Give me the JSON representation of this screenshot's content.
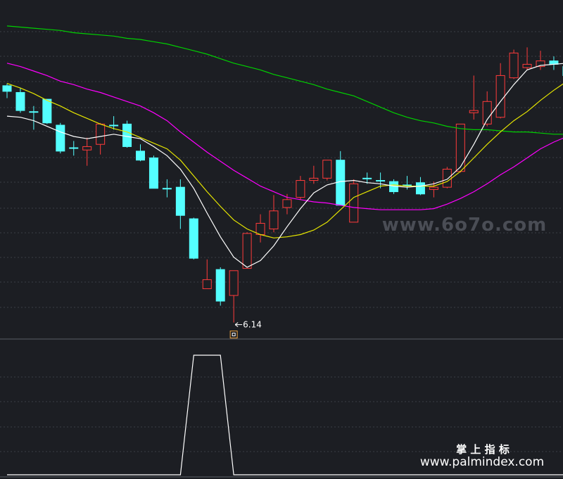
{
  "chart_data": {
    "type": "candlestick",
    "ylim": [
      6,
      9
    ],
    "up_color": "#ff3b3b",
    "down_color": "#54ffff",
    "candles": {
      "open": [
        8.24,
        8.18,
        8.01,
        8.12,
        7.89,
        7.69,
        7.67,
        7.72,
        7.89,
        7.9,
        7.66,
        7.6,
        7.33,
        7.34,
        7.06,
        6.44,
        6.61,
        6.38,
        6.62,
        6.92,
        6.97,
        7.16,
        7.25,
        7.4,
        7.42,
        7.58,
        7.03,
        7.42,
        7.4,
        7.39,
        7.36,
        7.38,
        7.32,
        7.34,
        7.48,
        8.0,
        7.9,
        7.96,
        8.31,
        8.4,
        8.41,
        8.46,
        8.41
      ],
      "high": [
        8.26,
        8.22,
        8.06,
        8.12,
        7.91,
        7.75,
        7.78,
        7.91,
        7.97,
        7.93,
        7.72,
        7.62,
        7.41,
        7.41,
        7.07,
        6.7,
        6.63,
        6.6,
        6.94,
        7.1,
        7.27,
        7.28,
        7.44,
        7.53,
        7.58,
        7.66,
        7.41,
        7.47,
        7.47,
        7.41,
        7.44,
        7.43,
        7.39,
        7.52,
        7.9,
        8.33,
        8.19,
        8.44,
        8.56,
        8.58,
        8.55,
        8.5,
        8.43
      ],
      "low": [
        8.13,
        8.0,
        7.85,
        7.9,
        7.64,
        7.62,
        7.53,
        7.63,
        7.85,
        7.69,
        7.57,
        7.33,
        7.25,
        6.97,
        6.7,
        6.44,
        6.29,
        6.14,
        6.62,
        6.85,
        6.94,
        7.1,
        7.23,
        7.37,
        7.4,
        7.18,
        7.03,
        7.37,
        7.33,
        7.28,
        7.32,
        7.27,
        7.25,
        7.33,
        7.47,
        7.94,
        7.88,
        7.95,
        8.3,
        8.38,
        8.38,
        8.38,
        8.33
      ],
      "close": [
        8.19,
        8.02,
        8.01,
        7.91,
        7.66,
        7.69,
        7.7,
        7.9,
        7.89,
        7.7,
        7.58,
        7.33,
        7.33,
        7.09,
        6.71,
        6.52,
        6.33,
        6.6,
        6.93,
        7.02,
        7.13,
        7.23,
        7.4,
        7.42,
        7.58,
        7.18,
        7.37,
        7.42,
        7.4,
        7.3,
        7.36,
        7.28,
        7.34,
        7.5,
        7.9,
        8.02,
        8.1,
        8.33,
        8.53,
        8.43,
        8.46,
        8.43,
        8.33
      ]
    },
    "series": [
      {
        "color": "#00d000",
        "values": [
          8.77,
          8.76,
          8.75,
          8.74,
          8.73,
          8.71,
          8.7,
          8.69,
          8.68,
          8.66,
          8.65,
          8.63,
          8.61,
          8.58,
          8.55,
          8.52,
          8.48,
          8.44,
          8.41,
          8.38,
          8.34,
          8.31,
          8.28,
          8.25,
          8.21,
          8.18,
          8.15,
          8.1,
          8.05,
          8.0,
          7.96,
          7.93,
          7.91,
          7.88,
          7.86,
          7.85,
          7.85,
          7.84,
          7.83,
          7.83,
          7.82,
          7.81,
          7.81
        ]
      },
      {
        "color": "#ff00ff",
        "values": [
          8.44,
          8.41,
          8.37,
          8.33,
          8.28,
          8.25,
          8.21,
          8.18,
          8.14,
          8.1,
          8.06,
          8.0,
          7.93,
          7.83,
          7.74,
          7.65,
          7.57,
          7.49,
          7.42,
          7.35,
          7.3,
          7.25,
          7.23,
          7.21,
          7.2,
          7.18,
          7.16,
          7.15,
          7.14,
          7.14,
          7.14,
          7.14,
          7.15,
          7.19,
          7.24,
          7.3,
          7.37,
          7.45,
          7.52,
          7.6,
          7.68,
          7.74,
          7.79
        ]
      },
      {
        "color": "#e6e600",
        "values": [
          8.26,
          8.22,
          8.17,
          8.11,
          8.06,
          8.0,
          7.95,
          7.9,
          7.86,
          7.83,
          7.78,
          7.73,
          7.68,
          7.58,
          7.44,
          7.3,
          7.17,
          7.05,
          6.97,
          6.92,
          6.89,
          6.9,
          6.92,
          6.96,
          7.03,
          7.14,
          7.25,
          7.3,
          7.35,
          7.36,
          7.35,
          7.35,
          7.35,
          7.39,
          7.48,
          7.6,
          7.72,
          7.83,
          7.93,
          8.01,
          8.11,
          8.2,
          8.28
        ]
      },
      {
        "color": "#ffffff",
        "values": [
          7.97,
          7.96,
          7.93,
          7.88,
          7.83,
          7.79,
          7.77,
          7.79,
          7.81,
          7.79,
          7.77,
          7.7,
          7.62,
          7.5,
          7.33,
          7.11,
          6.9,
          6.72,
          6.63,
          6.69,
          6.82,
          6.99,
          7.15,
          7.29,
          7.36,
          7.39,
          7.4,
          7.38,
          7.37,
          7.35,
          7.34,
          7.35,
          7.37,
          7.41,
          7.52,
          7.72,
          7.94,
          8.1,
          8.25,
          8.38,
          8.42,
          8.43,
          8.44
        ]
      }
    ],
    "annotations": [
      {
        "label": "6.14",
        "value": 6.14
      }
    ],
    "indicator": {
      "color": "#ffffff",
      "ylim": [
        0,
        1
      ],
      "values": [
        0,
        0,
        0,
        0,
        0,
        0,
        0,
        0,
        0,
        0,
        0,
        0,
        0,
        0,
        1,
        1,
        1,
        0,
        0,
        0,
        0,
        0,
        0,
        0,
        0,
        0,
        0,
        0,
        0,
        0,
        0,
        0,
        0,
        0,
        0,
        0,
        0,
        0,
        0,
        0,
        0,
        0,
        0
      ]
    }
  },
  "watermarks": {
    "site": "www.6o7o.com",
    "brand": "掌 上 指 标",
    "url": "www.palmindex.com"
  }
}
